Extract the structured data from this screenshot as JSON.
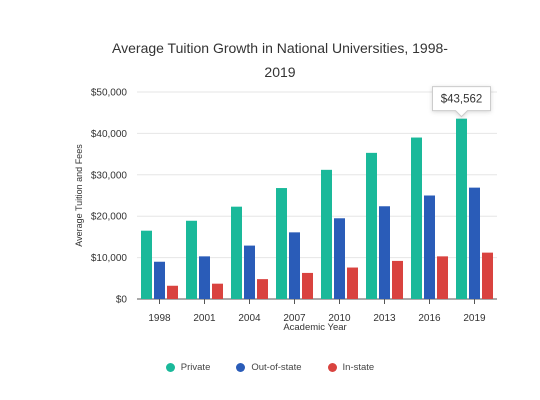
{
  "chart_data": {
    "type": "bar",
    "title": "Average Tuition Growth in National Universities, 1998-2019",
    "xlabel": "Academic Year",
    "ylabel": "Average Tuition and Fees",
    "categories": [
      "1998",
      "2001",
      "2004",
      "2007",
      "2010",
      "2013",
      "2016",
      "2019"
    ],
    "series": [
      {
        "name": "Private",
        "color": "#1ab99a",
        "values": [
          16500,
          18900,
          22300,
          26800,
          31200,
          35300,
          39000,
          43562
        ]
      },
      {
        "name": "Out-of-state",
        "color": "#2a5cb8",
        "values": [
          9000,
          10300,
          12900,
          16100,
          19500,
          22400,
          25000,
          26900
        ]
      },
      {
        "name": "In-state",
        "color": "#d9433f",
        "values": [
          3200,
          3700,
          4800,
          6300,
          7600,
          9200,
          10300,
          11200
        ]
      }
    ],
    "ylim": [
      0,
      50000
    ],
    "yticks": [
      "$0",
      "$10,000",
      "$20,000",
      "$30,000",
      "$40,000",
      "$50,000"
    ],
    "grid": true,
    "legend_position": "bottom",
    "tooltip": {
      "series": "Private",
      "category": "2019",
      "label": "$43,562"
    }
  }
}
